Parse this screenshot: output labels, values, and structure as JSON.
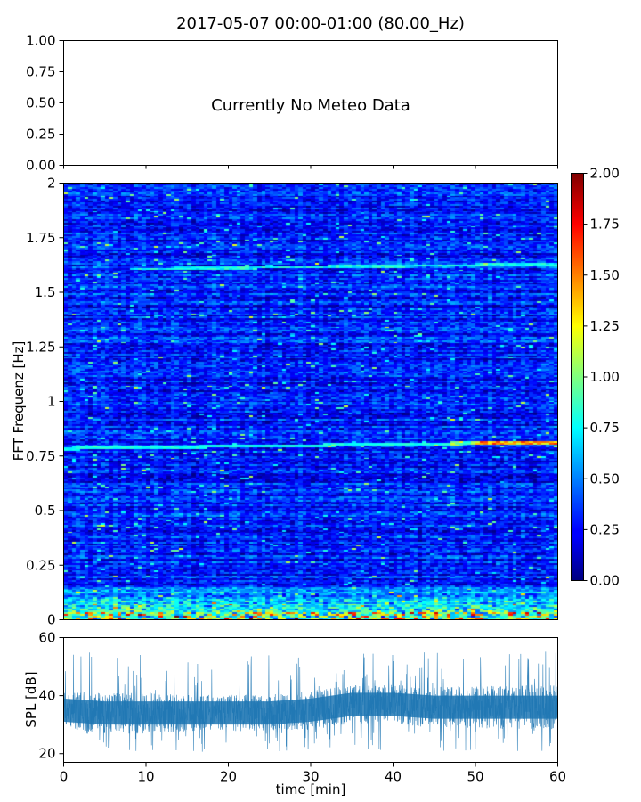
{
  "chart_data": [
    {
      "type": "line",
      "title": "2017-05-07 00:00-01:00 (80.00_Hz)",
      "annotation": "Currently No Meteo Data",
      "ylim": [
        0,
        1
      ],
      "yticks": [
        "0.00",
        "0.25",
        "0.50",
        "0.75",
        "1.00"
      ],
      "x_ticks_labeled": false,
      "series": []
    },
    {
      "type": "heatmap",
      "ylabel": "FFT Frequenz [Hz]",
      "xlim": [
        0,
        60
      ],
      "ylim": [
        0,
        2
      ],
      "yticks": [
        "0",
        "0.25",
        "0.5",
        "0.75",
        "1",
        "1.25",
        "1.5",
        "1.75",
        "2"
      ],
      "colormap": "jet",
      "colorbar": {
        "range": [
          0,
          2
        ],
        "ticks": [
          "0.00",
          "0.25",
          "0.50",
          "0.75",
          "1.00",
          "1.25",
          "1.50",
          "1.75",
          "2.00"
        ]
      },
      "features": [
        {
          "freq_hz": 0.78,
          "from_min": 0,
          "to_min": 60,
          "value": 0.9,
          "note": "narrow persistent line rising to ~0.81 Hz, stronger after 45 min"
        },
        {
          "freq_hz": 1.6,
          "from_min": 8,
          "to_min": 60,
          "value": 0.8,
          "note": "faint persistent line"
        },
        {
          "freq_hz": 0.0,
          "to_hz": 0.15,
          "value": 0.9,
          "note": "elevated low-frequency energy"
        }
      ],
      "background_level": 0.3
    },
    {
      "type": "line",
      "xlabel": "time [min]",
      "ylabel": "SPL [dB]",
      "xlim": [
        0,
        60
      ],
      "ylim": [
        17,
        60
      ],
      "xticks": [
        "0",
        "10",
        "20",
        "30",
        "40",
        "50",
        "60"
      ],
      "yticks": [
        "20",
        "40",
        "60"
      ],
      "series": [
        {
          "color": "#1f77b4",
          "x": [
            0,
            5,
            10,
            15,
            20,
            25,
            30,
            35,
            40,
            45,
            50,
            55,
            60
          ],
          "y": [
            35,
            34,
            34,
            34,
            34,
            34,
            35,
            37,
            37,
            36,
            36,
            36,
            36
          ],
          "band_low": [
            28,
            27,
            26,
            27,
            27,
            27,
            28,
            29,
            29,
            28,
            28,
            28,
            28
          ],
          "band_high": [
            42,
            43,
            42,
            41,
            41,
            41,
            43,
            44,
            44,
            44,
            44,
            45,
            45
          ],
          "peak_max": 58,
          "trough_min": 19
        }
      ]
    }
  ]
}
